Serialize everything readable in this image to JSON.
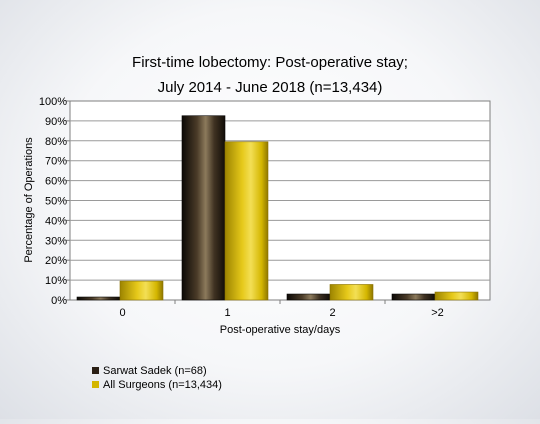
{
  "chart_data": {
    "type": "bar",
    "title_lines": [
      "First-time lobectomy: Post-operative stay;",
      "July 2014 - June 2018 (n=13,434)"
    ],
    "xlabel": "Post-operative stay/days",
    "ylabel": "Percentage of Operations",
    "categories": [
      "0",
      "1",
      "2",
      ">2"
    ],
    "ylim": [
      0,
      100
    ],
    "yticks": [
      "0%",
      "10%",
      "20%",
      "30%",
      "40%",
      "50%",
      "60%",
      "70%",
      "80%",
      "90%",
      "100%"
    ],
    "grid": true,
    "legend_position": "bottom-left",
    "series": [
      {
        "name": "Sarwat Sadek (n=68)",
        "values": [
          1.5,
          92.6,
          3.0,
          3.0
        ],
        "color": "#2a1f14"
      },
      {
        "name": "All Surgeons (n=13,434)",
        "values": [
          9.5,
          79.5,
          7.8,
          4.0
        ],
        "color": "#d4b600"
      }
    ]
  }
}
